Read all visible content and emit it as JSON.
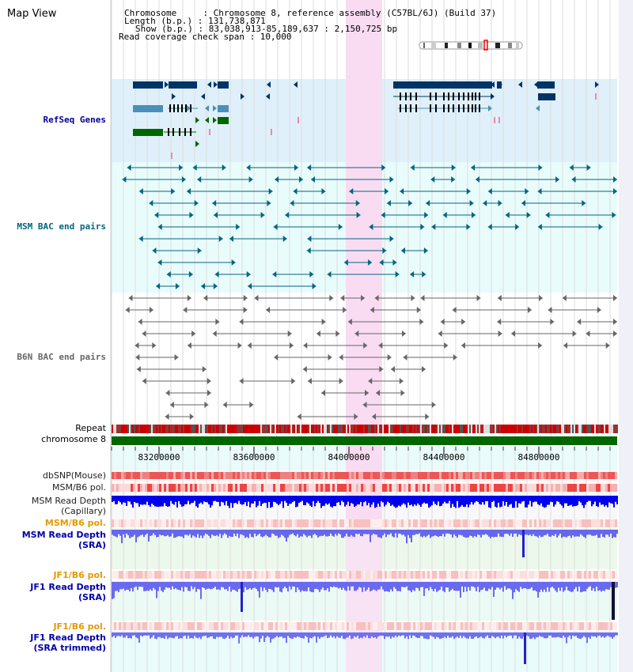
{
  "header": {
    "title": "Map View",
    "lines": [
      "Chromosome     : Chromosome 8, reference assembly (C57BL/6J) (Build 37)",
      "Length (b.p.) : 131,738,871",
      "Show (b.p.) : 83,038,913-85,189,637 : 2,150,725 bp",
      "Read coverage check span : 10,000"
    ]
  },
  "tracks": {
    "refseq": "RefSeq Genes",
    "msm_bac": "MSM BAC end pairs",
    "b6n_bac": "B6N BAC end pairs",
    "repeat": "Repeat",
    "chromosome": "chromosome 8",
    "dbsnp": "dbSNP(Mouse)",
    "msm_b6_pol_1": "MSM/B6 pol.",
    "msm_depth_cap_1": "MSM Read Depth",
    "msm_depth_cap_2": "(Capillary)",
    "msm_b6_pol_2": "MSM/B6 pol.",
    "msm_depth_sra_1": "MSM Read Depth",
    "msm_depth_sra_2": "(SRA)",
    "jf1_pol_1": "JF1/B6 pol.",
    "jf1_depth_sra_1": "JF1 Read Depth",
    "jf1_depth_sra_2": "(SRA)",
    "jf1_pol_2": "JF1/B6 pol.",
    "jf1_depth_trim_1": "JF1 Read Depth",
    "jf1_depth_trim_2": "(SRA trimmed)"
  },
  "axis": {
    "ticks": [
      "83200000",
      "83600000",
      "84000000",
      "84400000",
      "84800000"
    ]
  },
  "colors": {
    "refseq_bg": "#dff0fa",
    "bac_bg": "#e9fcfc",
    "highlight": "#f9dcf2",
    "gene_dark": "#003366",
    "gene_mid": "#4a90b8",
    "gene_green": "#006600",
    "msm_line": "#006680",
    "b6n_line": "#666666",
    "repeat_red": "#cc0000",
    "chromosome_green": "#006600",
    "depth_blue": "#0000ee",
    "depth_light_blue": "#6666ee"
  }
}
